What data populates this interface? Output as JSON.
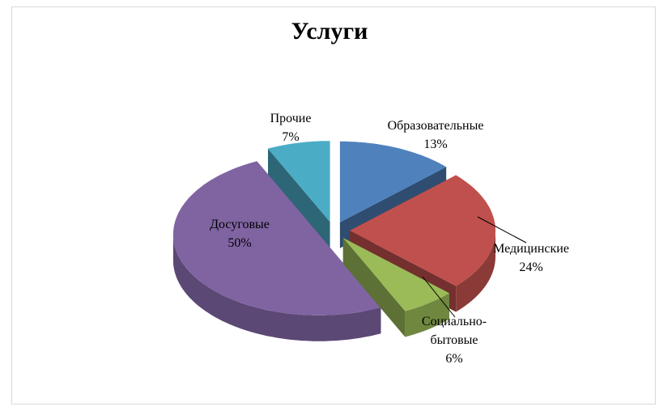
{
  "chart_data": {
    "type": "pie",
    "title": "Услуги",
    "categories": [
      "Образовательные",
      "Медицинские",
      "Социально-бытовые",
      "Досуговые",
      "Прочие"
    ],
    "values": [
      13,
      24,
      6,
      50,
      7
    ],
    "value_labels": [
      "13%",
      "24%",
      "6%",
      "50%",
      "7%"
    ],
    "colors": [
      "#4f81bd",
      "#c0504d",
      "#9bbb59",
      "#8064a2",
      "#4bacc6"
    ]
  }
}
